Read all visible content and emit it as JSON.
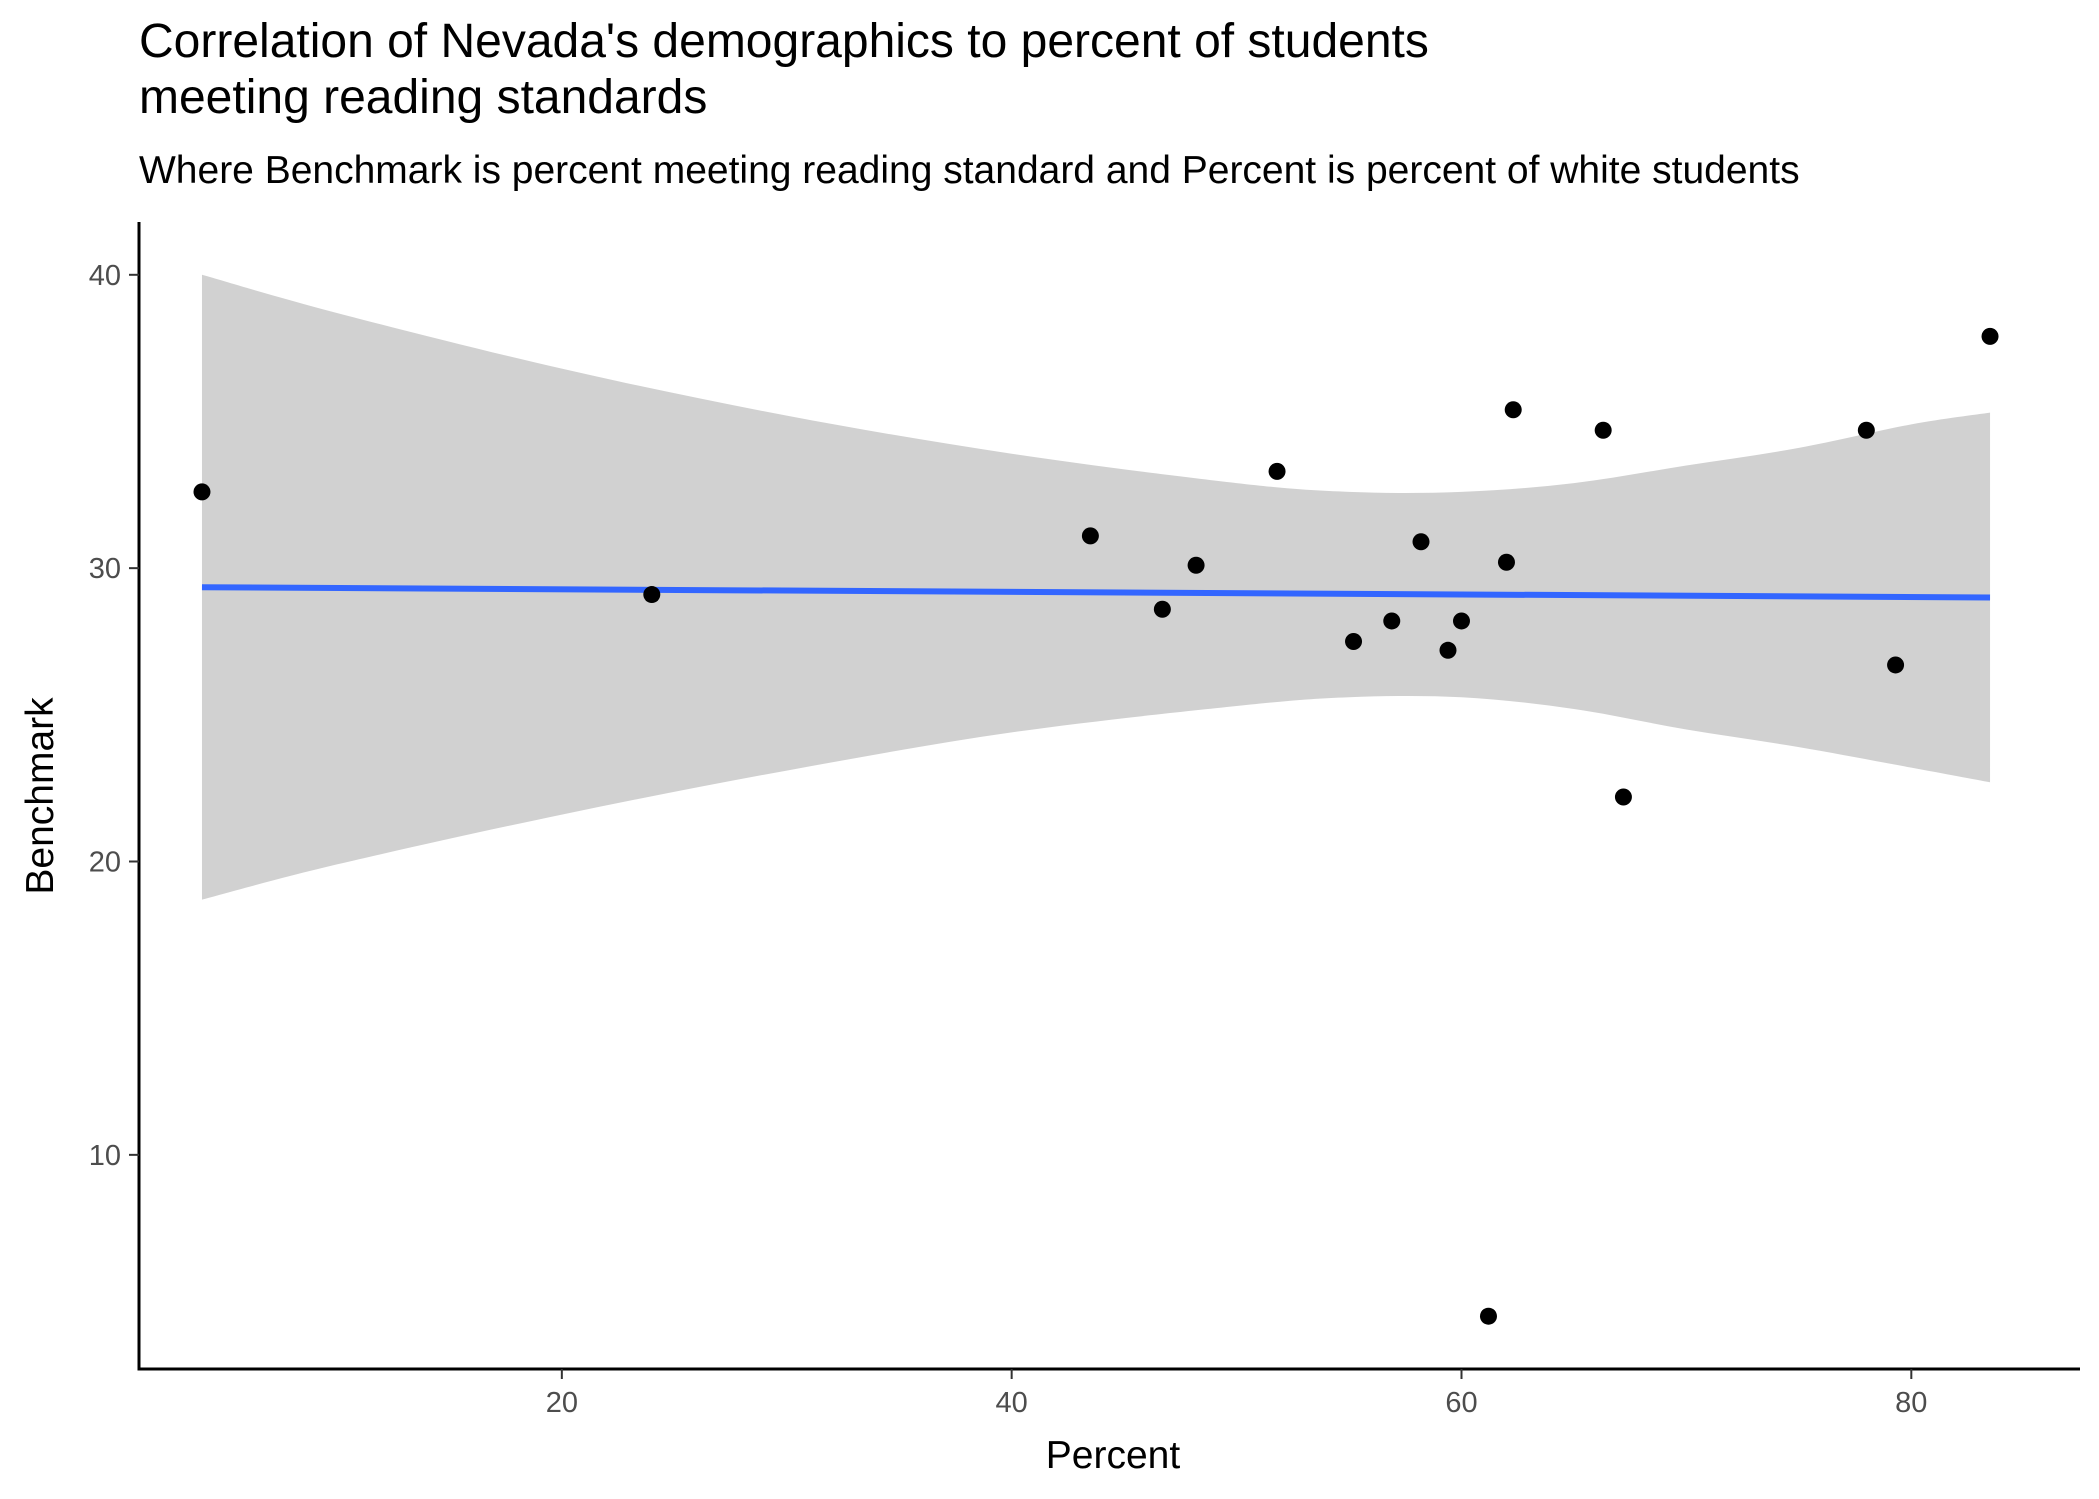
{
  "chart_data": {
    "type": "scatter",
    "title_lines": [
      "Correlation of Nevada's demographics to percent of students",
      "meeting reading standards"
    ],
    "subtitle": "Where Benchmark is percent meeting reading standard and Percent is percent of white students",
    "xlabel": "Percent",
    "ylabel": "Benchmark",
    "xlim": [
      1.2,
      87.5
    ],
    "ylim": [
      2.7,
      41.8
    ],
    "x_ticks": [
      20,
      40,
      60,
      80
    ],
    "y_ticks": [
      10,
      20,
      30,
      40
    ],
    "grid": false,
    "legend": "none",
    "points": [
      {
        "x": 4.0,
        "y": 32.6
      },
      {
        "x": 24.0,
        "y": 29.1
      },
      {
        "x": 43.5,
        "y": 31.1
      },
      {
        "x": 46.7,
        "y": 28.6
      },
      {
        "x": 48.2,
        "y": 30.1
      },
      {
        "x": 51.8,
        "y": 33.3
      },
      {
        "x": 55.2,
        "y": 27.5
      },
      {
        "x": 56.9,
        "y": 28.2
      },
      {
        "x": 58.2,
        "y": 30.9
      },
      {
        "x": 59.4,
        "y": 27.2
      },
      {
        "x": 60.0,
        "y": 28.2
      },
      {
        "x": 61.2,
        "y": 4.5
      },
      {
        "x": 62.0,
        "y": 30.2
      },
      {
        "x": 62.3,
        "y": 35.4
      },
      {
        "x": 66.3,
        "y": 34.7
      },
      {
        "x": 67.2,
        "y": 22.2
      },
      {
        "x": 78.0,
        "y": 34.7
      },
      {
        "x": 79.3,
        "y": 26.7
      },
      {
        "x": 83.5,
        "y": 37.9
      }
    ],
    "trend_line": {
      "method": "linear regression",
      "x": [
        4.0,
        83.5
      ],
      "y": [
        29.35,
        29.0
      ]
    },
    "confidence_band": {
      "x": [
        4.0,
        10.0,
        20.0,
        30.0,
        40.0,
        50.0,
        55.0,
        60.0,
        65.0,
        70.0,
        75.0,
        80.0,
        83.5
      ],
      "lower": [
        18.7,
        19.9,
        21.6,
        23.1,
        24.4,
        25.3,
        25.6,
        25.6,
        25.2,
        24.5,
        23.9,
        23.2,
        22.7
      ],
      "upper": [
        40.0,
        38.7,
        36.8,
        35.2,
        33.9,
        32.9,
        32.6,
        32.6,
        32.9,
        33.5,
        34.1,
        34.9,
        35.3
      ]
    },
    "colors": {
      "points": "#000000",
      "trend_line": "#3366FF",
      "confidence_band": "#999999",
      "axis": "#000000",
      "tick_label": "#4d4d4d"
    }
  }
}
